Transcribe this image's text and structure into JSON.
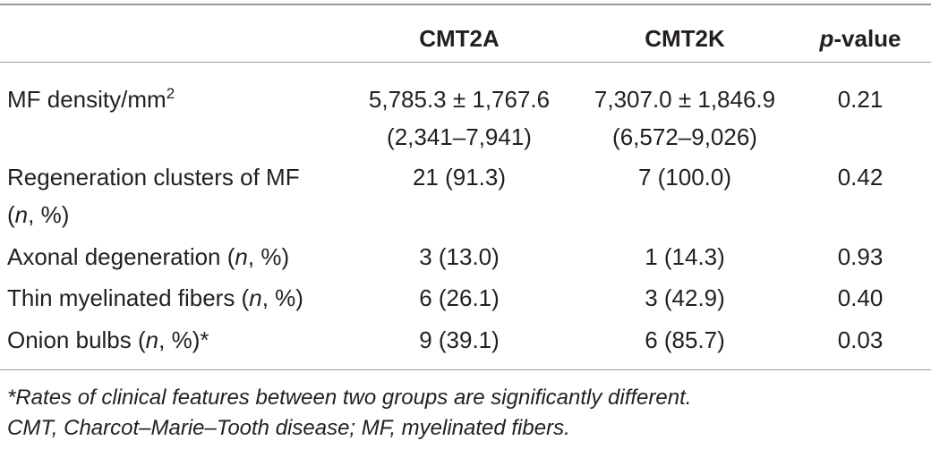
{
  "table": {
    "headers": {
      "cmt2a": "CMT2A",
      "cmt2k": "CMT2K",
      "p_italic": "p",
      "p_rest": "-value"
    },
    "rows": [
      {
        "label": "MF density/mm",
        "label_sup": "2",
        "cmt2a_line1": "5,785.3 ± 1,767.6",
        "cmt2a_line2": "(2,341–7,941)",
        "cmt2k_line1": "7,307.0 ± 1,846.9",
        "cmt2k_line2": "(6,572–9,026)",
        "p": "0.21"
      },
      {
        "label_line1": "Regeneration clusters of MF",
        "label_line2_pre": "(",
        "label_line2_n": "n",
        "label_line2_post": ", %)",
        "cmt2a": "21 (91.3)",
        "cmt2k": "7 (100.0)",
        "p": "0.42"
      },
      {
        "label_pre": "Axonal degeneration (",
        "label_n": "n",
        "label_post": ", %)",
        "cmt2a": "3 (13.0)",
        "cmt2k": "1 (14.3)",
        "p": "0.93"
      },
      {
        "label_pre": "Thin myelinated fibers (",
        "label_n": "n",
        "label_post": ", %)",
        "cmt2a": "6 (26.1)",
        "cmt2k": "3 (42.9)",
        "p": "0.40"
      },
      {
        "label_pre": "Onion bulbs (",
        "label_n": "n",
        "label_post": ", %)*",
        "cmt2a": "9 (39.1)",
        "cmt2k": "6 (85.7)",
        "p": "0.03"
      }
    ],
    "footnotes": [
      "*Rates of clinical features between two groups are significantly different.",
      "CMT, Charcot–Marie–Tooth disease; MF, myelinated fibers."
    ]
  }
}
